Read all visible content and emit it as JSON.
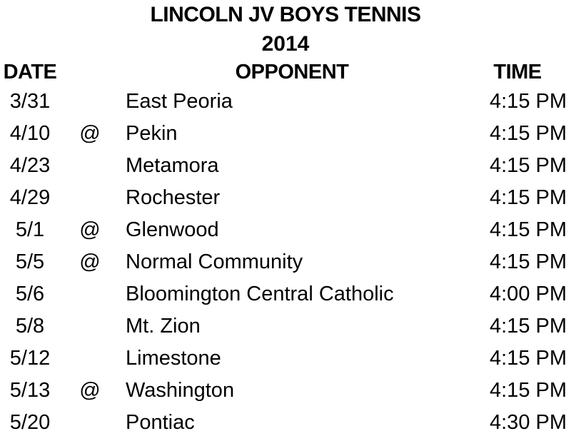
{
  "header": {
    "title": "LINCOLN JV BOYS TENNIS",
    "year": "2014"
  },
  "columns": {
    "date": "DATE",
    "opponent": "OPPONENT",
    "time": "TIME"
  },
  "rows": [
    {
      "date": "3/31",
      "at": "",
      "opponent": "East Peoria",
      "time": "4:15 PM"
    },
    {
      "date": "4/10",
      "at": "@",
      "opponent": "Pekin",
      "time": "4:15 PM"
    },
    {
      "date": "4/23",
      "at": "",
      "opponent": "Metamora",
      "time": "4:15 PM"
    },
    {
      "date": "4/29",
      "at": "",
      "opponent": "Rochester",
      "time": "4:15 PM"
    },
    {
      "date": "5/1",
      "at": "@",
      "opponent": "Glenwood",
      "time": "4:15 PM"
    },
    {
      "date": "5/5",
      "at": "@",
      "opponent": "Normal Community",
      "time": "4:15 PM"
    },
    {
      "date": "5/6",
      "at": "",
      "opponent": "Bloomington Central Catholic",
      "time": "4:00 PM"
    },
    {
      "date": "5/8",
      "at": "",
      "opponent": "Mt. Zion",
      "time": "4:15 PM"
    },
    {
      "date": "5/12",
      "at": "",
      "opponent": "Limestone",
      "time": "4:15 PM"
    },
    {
      "date": "5/13",
      "at": "@",
      "opponent": "Washington",
      "time": "4:15 PM"
    },
    {
      "date": "5/20",
      "at": "",
      "opponent": "Pontiac",
      "time": "4:30 PM"
    }
  ],
  "colors": {
    "text": "#000000",
    "background": "#ffffff"
  }
}
